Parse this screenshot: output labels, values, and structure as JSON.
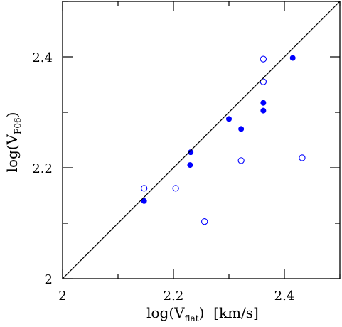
{
  "chart_data": {
    "type": "scatter",
    "title": "",
    "xlabel": {
      "prefix": "log(V",
      "sub": "flat",
      "suffix": ")  [km/s]"
    },
    "ylabel": {
      "prefix": "log(V",
      "sub": "F06",
      "suffix": ")"
    },
    "xlim": [
      2.0,
      2.5
    ],
    "ylim": [
      2.0,
      2.5
    ],
    "x_tick_labels": [
      "2",
      "2.2",
      "2.4"
    ],
    "y_tick_labels": [
      "2",
      "2.2",
      "2.4"
    ],
    "reference_line": {
      "label": "one-to-one",
      "points": [
        [
          2.0,
          2.0
        ],
        [
          2.5,
          2.5
        ]
      ]
    },
    "marker_color": "#0000ff",
    "series": [
      {
        "marker": "filled-circle",
        "points": [
          [
            2.147,
            2.14
          ],
          [
            2.23,
            2.205
          ],
          [
            2.231,
            2.228
          ],
          [
            2.3,
            2.288
          ],
          [
            2.322,
            2.27
          ],
          [
            2.362,
            2.303
          ],
          [
            2.362,
            2.317
          ],
          [
            2.415,
            2.398
          ]
        ]
      },
      {
        "marker": "open-circle",
        "points": [
          [
            2.147,
            2.163
          ],
          [
            2.204,
            2.163
          ],
          [
            2.256,
            2.103
          ],
          [
            2.322,
            2.213
          ],
          [
            2.362,
            2.396
          ],
          [
            2.362,
            2.355
          ],
          [
            2.432,
            2.218
          ]
        ]
      }
    ]
  }
}
